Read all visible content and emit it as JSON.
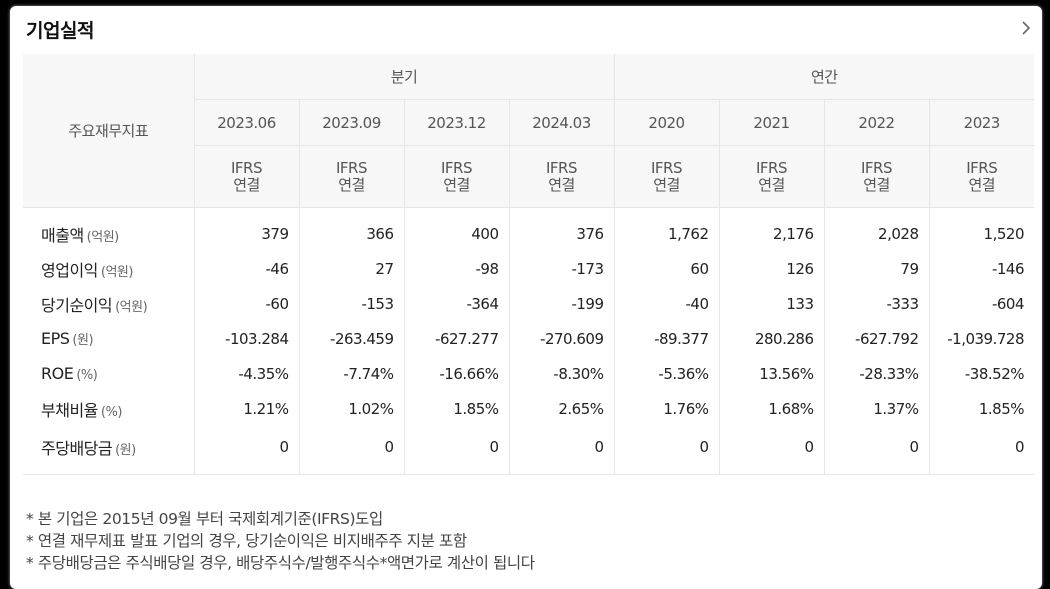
{
  "section": {
    "title": "기업실적"
  },
  "table": {
    "label_header": "주요재무지표",
    "groups": [
      {
        "label": "분기"
      },
      {
        "label": "연간"
      }
    ],
    "periods": [
      "2023.06",
      "2023.09",
      "2023.12",
      "2024.03",
      "2020",
      "2021",
      "2022",
      "2023"
    ],
    "standard": {
      "line1": "IFRS",
      "line2": "연결"
    },
    "rows": [
      {
        "label": "매출액",
        "unit": "(억원)",
        "values": [
          "379",
          "366",
          "400",
          "376",
          "1,762",
          "2,176",
          "2,028",
          "1,520"
        ]
      },
      {
        "label": "영업이익",
        "unit": "(억원)",
        "values": [
          "-46",
          "27",
          "-98",
          "-173",
          "60",
          "126",
          "79",
          "-146"
        ]
      },
      {
        "label": "당기순이익",
        "unit": "(억원)",
        "values": [
          "-60",
          "-153",
          "-364",
          "-199",
          "-40",
          "133",
          "-333",
          "-604"
        ]
      },
      {
        "label": "EPS",
        "unit": "(원)",
        "values": [
          "-103.284",
          "-263.459",
          "-627.277",
          "-270.609",
          "-89.377",
          "280.286",
          "-627.792",
          "-1,039.728"
        ]
      },
      {
        "label": "ROE",
        "unit": "(%)",
        "values": [
          "-4.35%",
          "-7.74%",
          "-16.66%",
          "-8.30%",
          "-5.36%",
          "13.56%",
          "-28.33%",
          "-38.52%"
        ]
      },
      {
        "label": "부채비율",
        "unit": "(%)",
        "values": [
          "1.21%",
          "1.02%",
          "1.85%",
          "2.65%",
          "1.76%",
          "1.68%",
          "1.37%",
          "1.85%"
        ]
      },
      {
        "label": "주당배당금",
        "unit": "(원)",
        "values": [
          "0",
          "0",
          "0",
          "0",
          "0",
          "0",
          "0",
          "0"
        ]
      }
    ]
  },
  "notes": [
    "* 본 기업은 2015년 09월 부터 국제회계기준(IFRS)도입",
    "* 연결 재무제표 발표 기업의 경우, 당기순이익은 비지배주주 지분 포함",
    "* 주당배당금은 주식배당일 경우, 배당주식수/발행주식수*액면가로 계산이 됩니다"
  ],
  "icons": {
    "more": "chevron-right-icon"
  }
}
